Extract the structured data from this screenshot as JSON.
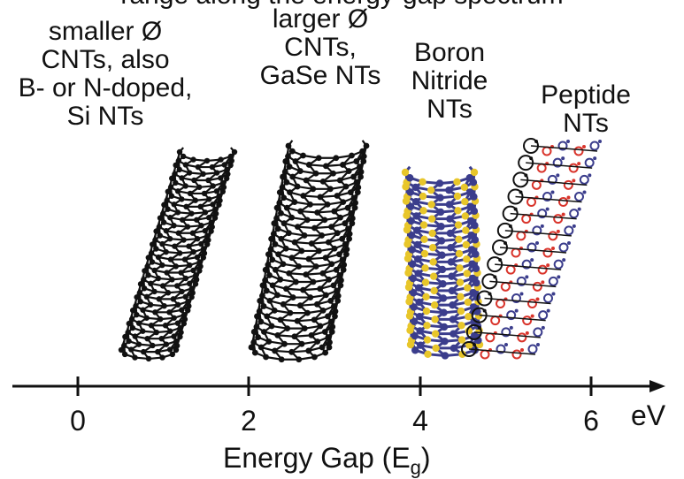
{
  "partial_top_text": "range along the energy-gap spectrum",
  "groups": [
    {
      "lines": [
        "smaller Ø",
        "CNTs, also",
        "B- or N-doped,",
        "Si NTs"
      ]
    },
    {
      "lines": [
        "larger Ø",
        "CNTs,",
        "GaSe NTs"
      ]
    },
    {
      "lines": [
        "Boron",
        "Nitride",
        "NTs"
      ]
    },
    {
      "lines": [
        "Peptide",
        "NTs"
      ]
    }
  ],
  "axis": {
    "ticks": [
      "0",
      "2",
      "4",
      "6"
    ],
    "unit": "eV",
    "title": "Energy Gap (E",
    "title_sub": "g",
    "title_end": ")"
  },
  "colors": {
    "carbon": "#111111",
    "boron": "#e8c62a",
    "nitrogen": "#3b3d8c",
    "oxygen": "#d9342b"
  }
}
